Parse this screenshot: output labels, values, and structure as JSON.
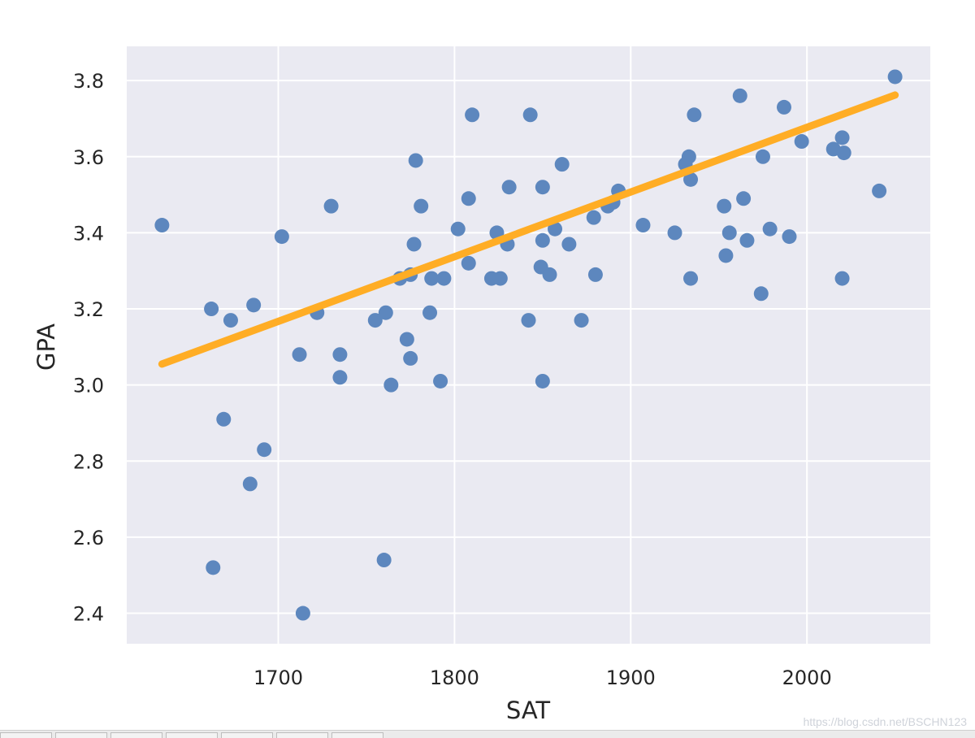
{
  "chart_data": {
    "type": "scatter",
    "xlabel": "SAT",
    "ylabel": "GPA",
    "xlim": [
      1614,
      2070
    ],
    "ylim": [
      2.32,
      3.89
    ],
    "x_ticks": [
      1700,
      1800,
      1900,
      2000
    ],
    "x_tick_labels": [
      "1700",
      "1800",
      "1900",
      "2000"
    ],
    "y_ticks": [
      2.4,
      2.6,
      2.8,
      3.0,
      3.2,
      3.4,
      3.6,
      3.8
    ],
    "y_tick_labels": [
      "2.4",
      "2.6",
      "2.8",
      "3.0",
      "3.2",
      "3.4",
      "3.6",
      "3.8"
    ],
    "grid": true,
    "points": [
      [
        1634,
        3.42
      ],
      [
        1662,
        3.2
      ],
      [
        1663,
        2.52
      ],
      [
        1669,
        2.91
      ],
      [
        1673,
        3.17
      ],
      [
        1684,
        2.74
      ],
      [
        1686,
        3.21
      ],
      [
        1692,
        2.83
      ],
      [
        1702,
        3.39
      ],
      [
        1712,
        3.08
      ],
      [
        1714,
        2.4
      ],
      [
        1722,
        3.19
      ],
      [
        1730,
        3.47
      ],
      [
        1735,
        3.02
      ],
      [
        1735,
        3.08
      ],
      [
        1755,
        3.17
      ],
      [
        1760,
        2.54
      ],
      [
        1761,
        3.19
      ],
      [
        1764,
        3.0
      ],
      [
        1769,
        3.28
      ],
      [
        1773,
        3.12
      ],
      [
        1775,
        3.07
      ],
      [
        1775,
        3.29
      ],
      [
        1777,
        3.37
      ],
      [
        1778,
        3.59
      ],
      [
        1781,
        3.47
      ],
      [
        1786,
        3.19
      ],
      [
        1787,
        3.28
      ],
      [
        1792,
        3.01
      ],
      [
        1794,
        3.28
      ],
      [
        1802,
        3.41
      ],
      [
        1808,
        3.32
      ],
      [
        1808,
        3.49
      ],
      [
        1810,
        3.71
      ],
      [
        1821,
        3.28
      ],
      [
        1824,
        3.4
      ],
      [
        1826,
        3.28
      ],
      [
        1830,
        3.37
      ],
      [
        1831,
        3.52
      ],
      [
        1842,
        3.17
      ],
      [
        1843,
        3.71
      ],
      [
        1849,
        3.31
      ],
      [
        1850,
        3.38
      ],
      [
        1850,
        3.52
      ],
      [
        1850,
        3.01
      ],
      [
        1854,
        3.29
      ],
      [
        1857,
        3.41
      ],
      [
        1861,
        3.58
      ],
      [
        1865,
        3.37
      ],
      [
        1872,
        3.17
      ],
      [
        1879,
        3.44
      ],
      [
        1880,
        3.29
      ],
      [
        1887,
        3.47
      ],
      [
        1890,
        3.48
      ],
      [
        1893,
        3.51
      ],
      [
        1907,
        3.42
      ],
      [
        1925,
        3.4
      ],
      [
        1931,
        3.58
      ],
      [
        1933,
        3.6
      ],
      [
        1934,
        3.54
      ],
      [
        1934,
        3.28
      ],
      [
        1936,
        3.71
      ],
      [
        1953,
        3.47
      ],
      [
        1954,
        3.34
      ],
      [
        1956,
        3.4
      ],
      [
        1962,
        3.76
      ],
      [
        1964,
        3.49
      ],
      [
        1966,
        3.38
      ],
      [
        1974,
        3.24
      ],
      [
        1975,
        3.6
      ],
      [
        1979,
        3.41
      ],
      [
        1987,
        3.73
      ],
      [
        1990,
        3.39
      ],
      [
        1997,
        3.64
      ],
      [
        2015,
        3.62
      ],
      [
        2020,
        3.65
      ],
      [
        2020,
        3.28
      ],
      [
        2021,
        3.61
      ],
      [
        2041,
        3.51
      ],
      [
        2050,
        3.81
      ]
    ],
    "regression_line": {
      "x": [
        1634,
        2050
      ],
      "y": [
        3.055,
        3.762
      ]
    },
    "colors": {
      "plot_background": "#eaeaf2",
      "grid": "#ffffff",
      "points": "#5d87be",
      "regression_line": "#ffad25"
    }
  },
  "watermark": "https://blog.csdn.net/BSCHN123",
  "taskbar": {
    "tab_count": 7
  }
}
